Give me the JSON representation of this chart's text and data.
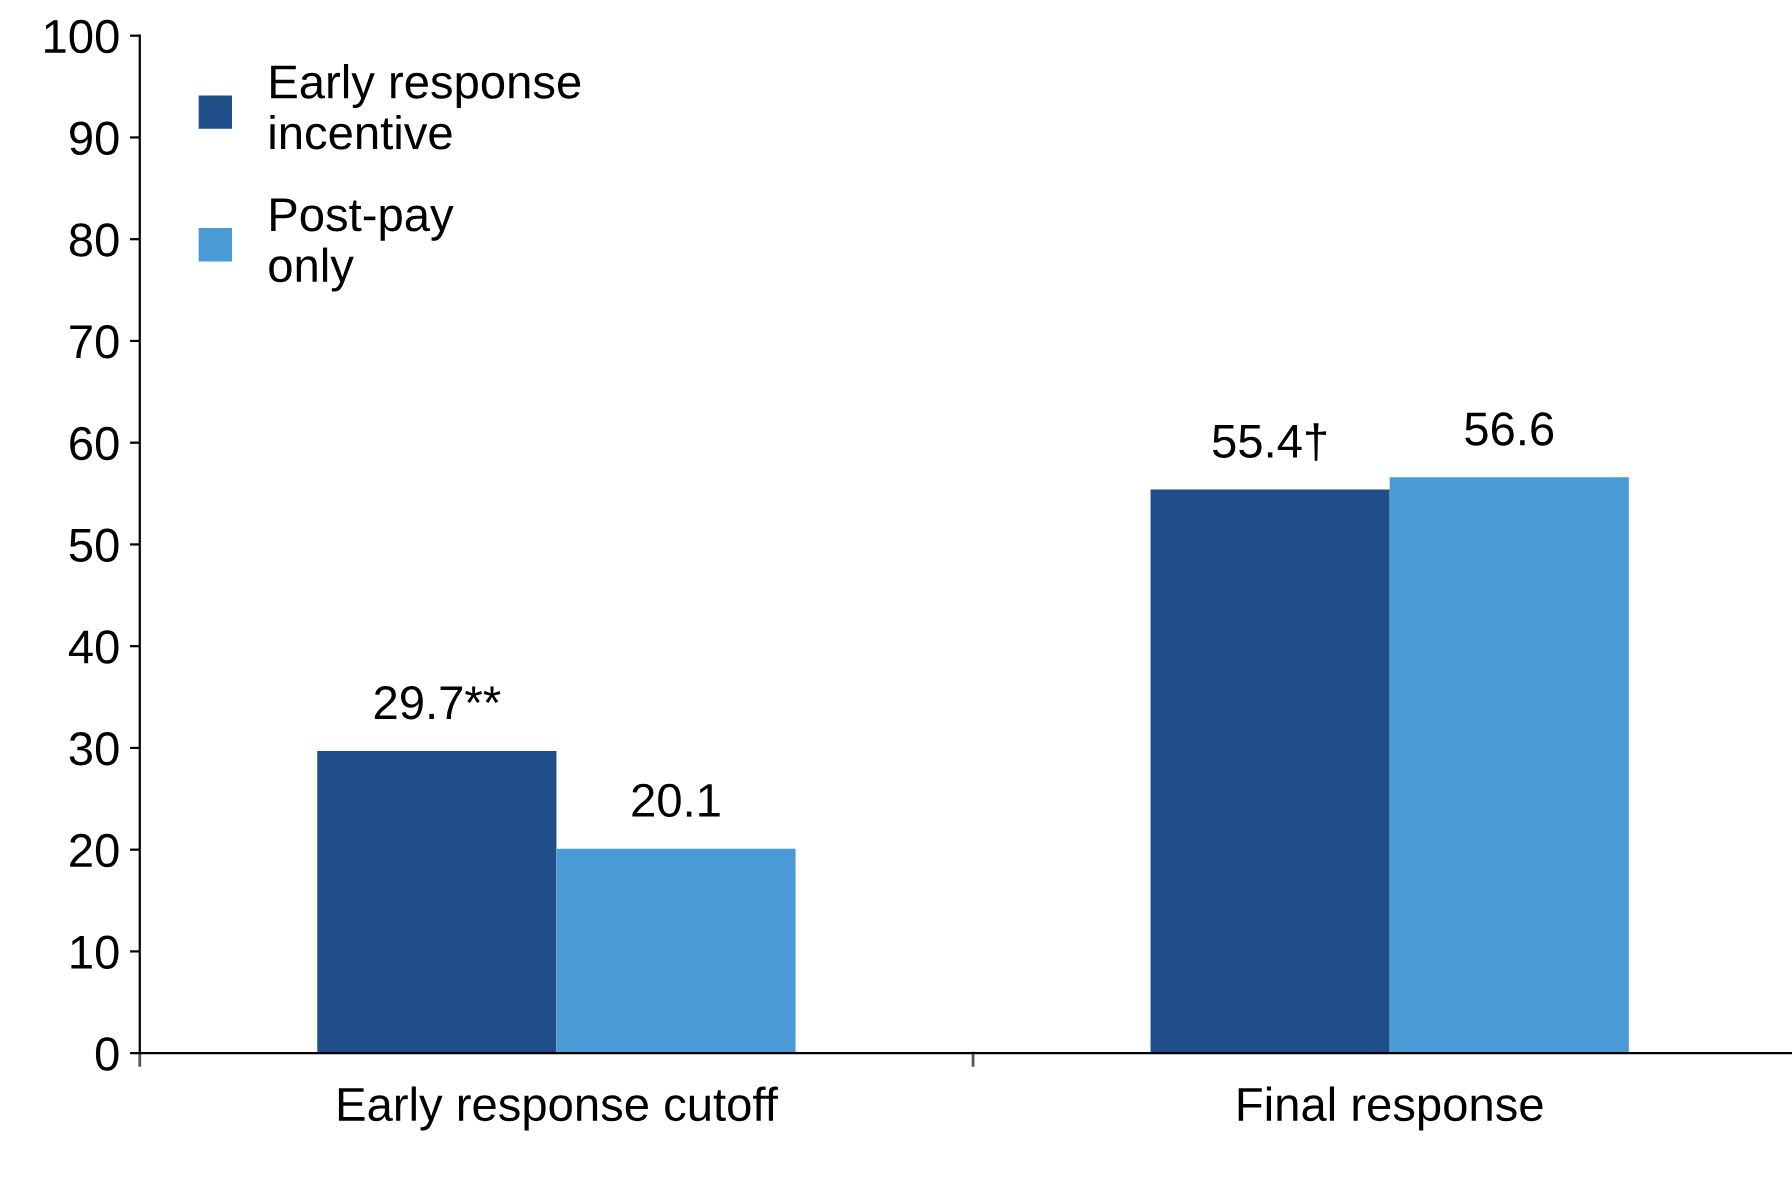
{
  "chart_data": {
    "type": "bar",
    "categories": [
      "Early response cutoff",
      "Final response"
    ],
    "series": [
      {
        "name": "Early response\nincentive",
        "color": "#1f4e89",
        "values": [
          29.7,
          55.4
        ],
        "value_labels": [
          "29.7**",
          "55.4†"
        ]
      },
      {
        "name": "Post-pay\nonly",
        "color": "#4a9ad6",
        "values": [
          20.1,
          56.6
        ],
        "value_labels": [
          "20.1",
          "56.6"
        ]
      }
    ],
    "ylim": [
      0,
      100
    ],
    "yticks": [
      0,
      10,
      20,
      30,
      40,
      50,
      60,
      70,
      80,
      90,
      100
    ],
    "grid": false,
    "legend": "top left"
  }
}
